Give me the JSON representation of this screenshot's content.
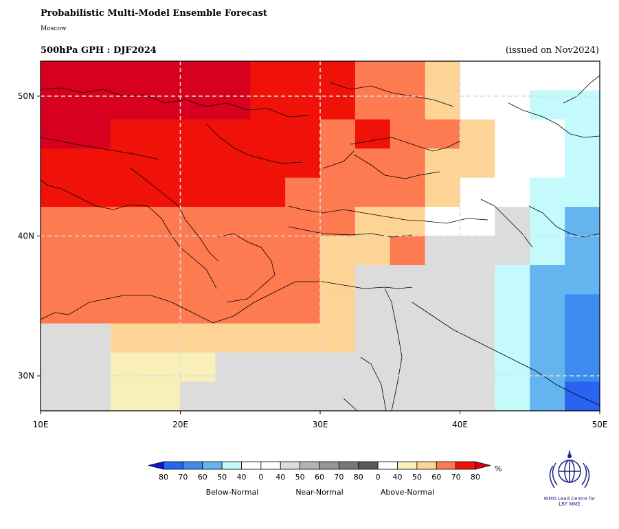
{
  "header": {
    "title": "Probabilistic Multi-Model Ensemble Forecast",
    "subtitle": "Moscow",
    "variable_label": "500hPa GPH : DJF2024",
    "issued": "(issued on Nov2024)"
  },
  "map": {
    "lon_range": [
      10,
      50
    ],
    "lat_range": [
      27.5,
      52.5
    ],
    "grid_step_deg": 2.5,
    "graticule": {
      "lons": [
        20,
        30,
        40
      ],
      "lats": [
        30,
        40,
        50
      ],
      "style": "dashed-light-gray"
    },
    "x_ticks": [
      "10E",
      "20E",
      "30E",
      "40E",
      "50E"
    ],
    "y_ticks": [
      "30N",
      "40N",
      "50N"
    ],
    "coastlines": "black thin",
    "cells_by_row_north_to_south": [
      "99999888765555",
      "99999888765533",
      "99999888766533",
      "88888888766533",
      "88888888766533",
      "88888887666443",
      "88888887666443",
      "88888877666443",
      "88888877666443",
      "77777777666443",
      "77777777666443",
      "77777777666443",
      "77777767666443",
      "77777766666443",
      "77777766666443",
      "77777766666443",
      "77777766666443",
      "77777766666443",
      "77777766666443",
      "77777766666443"
    ]
  },
  "legend": {
    "unit": "%",
    "tick_labels": [
      "80",
      "70",
      "60",
      "50",
      "40",
      "0",
      "40",
      "50",
      "60",
      "70",
      "80",
      "0",
      "40",
      "50",
      "60",
      "70",
      "80"
    ],
    "categories": [
      "Below-Normal",
      "Near-Normal",
      "Above-Normal"
    ],
    "colors": {
      "below": [
        "#1414d2",
        "#2864f0",
        "#3c8cf0",
        "#64b4f0",
        "#c4fafc",
        "#ffffff"
      ],
      "near": [
        "#ffffff",
        "#dcdcdc",
        "#b4b4b4",
        "#969696",
        "#787878",
        "#5a5a5a"
      ],
      "above": [
        "#ffffff",
        "#f8f0b8",
        "#fed396",
        "#fe7a50",
        "#f01208",
        "#d7001e"
      ],
      "missing_or_normal_land": "#dcdcdc"
    }
  },
  "logo": {
    "text_line1": "WMO Lead Centre for",
    "text_line2": "LRF MME"
  },
  "grid_values": [
    [
      "A80",
      "A80",
      "A80",
      "A80",
      "A80",
      "A80",
      "A70",
      "A70",
      "A70",
      "A60",
      "A60",
      "A50",
      "0",
      "0",
      "0",
      "0"
    ],
    [
      "A80",
      "A80",
      "A80",
      "A80",
      "A80",
      "A80",
      "A70",
      "A70",
      "A70",
      "A60",
      "A60",
      "A50",
      "0",
      "0",
      "B50",
      "B50"
    ],
    [
      "A80",
      "A80",
      "A70",
      "A70",
      "A70",
      "A70",
      "A70",
      "A70",
      "A60",
      "A70",
      "A60",
      "A60",
      "A50",
      "0",
      "0",
      "B50"
    ],
    [
      "A70",
      "A70",
      "A70",
      "A70",
      "A70",
      "A70",
      "A70",
      "A70",
      "A60",
      "A60",
      "A60",
      "A50",
      "A50",
      "0",
      "0",
      "B50"
    ],
    [
      "A70",
      "A70",
      "A70",
      "A70",
      "A70",
      "A70",
      "A70",
      "A60",
      "A60",
      "A60",
      "A60",
      "A50",
      "0",
      "0",
      "B50",
      "B50"
    ],
    [
      "A60",
      "A60",
      "A60",
      "A60",
      "A60",
      "A60",
      "A60",
      "A60",
      "A60",
      "A50",
      "A50",
      "0",
      "0",
      "N",
      "B50",
      "B60"
    ],
    [
      "A60",
      "A60",
      "A60",
      "A60",
      "A60",
      "A60",
      "A60",
      "A60",
      "A50",
      "A50",
      "A60",
      "N",
      "N",
      "N",
      "B50",
      "B60"
    ],
    [
      "A60",
      "A60",
      "A60",
      "A60",
      "A60",
      "A60",
      "A60",
      "A60",
      "A50",
      "N",
      "N",
      "N",
      "N",
      "B50",
      "B60",
      "B60"
    ],
    [
      "A60",
      "A60",
      "A60",
      "A60",
      "A60",
      "A60",
      "A60",
      "A60",
      "A50",
      "N",
      "N",
      "N",
      "N",
      "B50",
      "B60",
      "B70"
    ],
    [
      "N",
      "N",
      "A50",
      "A50",
      "A50",
      "A50",
      "A50",
      "A50",
      "A50",
      "N",
      "N",
      "N",
      "N",
      "B50",
      "B60",
      "B70"
    ],
    [
      "N",
      "N",
      "A40",
      "A40",
      "A40",
      "N",
      "N",
      "N",
      "N",
      "N",
      "N",
      "N",
      "N",
      "B50",
      "B60",
      "B70"
    ],
    [
      "N",
      "N",
      "A40",
      "A40",
      "N",
      "N",
      "N",
      "N",
      "N",
      "N",
      "N",
      "N",
      "N",
      "B50",
      "B60",
      "B80"
    ]
  ]
}
